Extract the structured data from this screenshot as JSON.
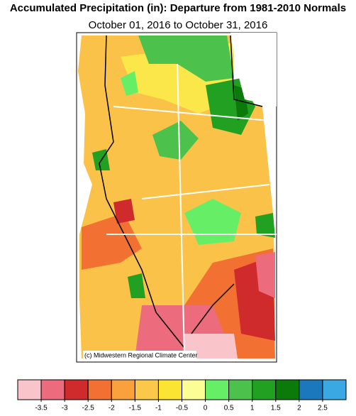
{
  "header": {
    "title": "Accumulated Precipitation (in): Departure from 1981-2010 Normals",
    "subtitle": "October 01, 2016 to October 31, 2016"
  },
  "map": {
    "credit": "(c) Midwestern Regional Climate Center"
  },
  "legend": {
    "colors": [
      "#f9c5ca",
      "#ec6c7d",
      "#cf2a2c",
      "#f37033",
      "#f9a23d",
      "#fcc84a",
      "#fbe432",
      "#fdfd96",
      "#66ee66",
      "#4cc24c",
      "#22a022",
      "#0b7a0b",
      "#1c78bd",
      "#3aa8e2"
    ],
    "ticks": [
      -3.5,
      -3,
      -2.5,
      -2,
      -1.5,
      -1,
      -0.5,
      0,
      0.5,
      1,
      1.5,
      2,
      2.5
    ]
  }
}
